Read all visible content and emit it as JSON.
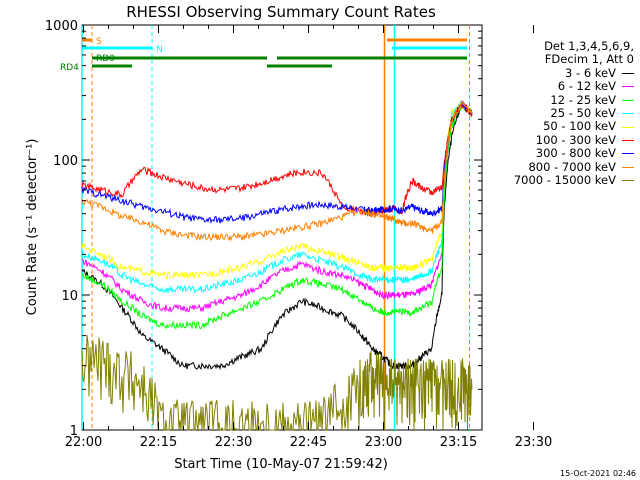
{
  "chart_data": {
    "type": "line",
    "title": "RHESSI Observing Summary Count Rates",
    "xlabel": "Start Time (10-May-07 21:59:42)",
    "ylabel": "Count Rate (s⁻¹ detector⁻¹)",
    "yscale": "log",
    "ylim": [
      1,
      1000
    ],
    "xlim_minutes": [
      0,
      80
    ],
    "x_ticks": [
      "22:00",
      "22:15",
      "22:30",
      "22:45",
      "23:00",
      "23:15",
      "23:30"
    ],
    "y_ticks": [
      "1",
      "10",
      "100",
      "1000"
    ],
    "legend_header": [
      "Det 1,3,4,5,6,9,",
      "FDecim 1, Att 0"
    ],
    "series": [
      {
        "name": "3 - 6 keV",
        "color": "#000000",
        "x": [
          0,
          4,
          8,
          12,
          16,
          20,
          24,
          28,
          32,
          36,
          40,
          44,
          48,
          52,
          56,
          58,
          60,
          62,
          64,
          66,
          68,
          70,
          72,
          74,
          76,
          78
        ],
        "values": [
          15,
          12,
          8,
          5,
          4,
          3,
          3,
          3,
          3.5,
          4,
          7,
          9,
          8,
          7,
          5,
          4,
          3.5,
          3,
          3,
          3,
          3.5,
          4,
          10,
          150,
          260,
          220
        ]
      },
      {
        "name": "6 - 12 keV",
        "color": "#ff00ff",
        "x": [
          0,
          4,
          8,
          12,
          16,
          20,
          24,
          28,
          32,
          36,
          40,
          44,
          48,
          52,
          56,
          58,
          60,
          62,
          64,
          66,
          68,
          70,
          72,
          74,
          76,
          78
        ],
        "values": [
          18,
          15,
          11,
          9,
          8,
          8,
          8,
          9,
          10,
          12,
          15,
          17,
          15,
          14,
          12,
          11,
          10,
          10,
          10,
          10,
          11,
          12,
          20,
          200,
          260,
          220
        ]
      },
      {
        "name": "12 - 25 keV",
        "color": "#00ff00",
        "x": [
          0,
          4,
          8,
          12,
          16,
          20,
          24,
          28,
          32,
          36,
          40,
          44,
          48,
          52,
          56,
          58,
          60,
          62,
          64,
          66,
          68,
          70,
          72,
          74,
          76,
          78
        ],
        "values": [
          14,
          12,
          9,
          7,
          6,
          6,
          6,
          7,
          8,
          9,
          11,
          13,
          12,
          11,
          9,
          8,
          7.5,
          7.5,
          7.5,
          7.5,
          8,
          9,
          16,
          180,
          260,
          220
        ]
      },
      {
        "name": "25 - 50 keV",
        "color": "#00ffff",
        "x": [
          0,
          4,
          8,
          12,
          16,
          20,
          24,
          28,
          32,
          36,
          40,
          44,
          48,
          52,
          56,
          58,
          60,
          62,
          64,
          66,
          68,
          70,
          72,
          74,
          76,
          78
        ],
        "values": [
          20,
          18,
          14,
          12,
          11,
          11,
          11,
          12,
          13,
          15,
          18,
          20,
          18,
          16,
          14,
          13,
          13,
          13,
          13,
          13,
          14,
          15,
          25,
          220,
          260,
          220
        ]
      },
      {
        "name": "50 - 100 keV",
        "color": "#ffff00",
        "x": [
          0,
          4,
          8,
          12,
          16,
          20,
          24,
          28,
          32,
          36,
          40,
          44,
          48,
          52,
          56,
          58,
          60,
          62,
          64,
          66,
          68,
          70,
          72,
          74,
          76,
          78
        ],
        "values": [
          23,
          20,
          16,
          15,
          14,
          14,
          14,
          15,
          16,
          18,
          21,
          23,
          21,
          19,
          17,
          16,
          16,
          16,
          16,
          16,
          17,
          18,
          30,
          220,
          260,
          220
        ]
      },
      {
        "name": "100 - 300 keV",
        "color": "#ff0000",
        "x": [
          0,
          4,
          8,
          12,
          16,
          20,
          24,
          28,
          32,
          36,
          40,
          44,
          48,
          52,
          56,
          58,
          60,
          62,
          64,
          66,
          68,
          70,
          72,
          74,
          76,
          78
        ],
        "values": [
          65,
          60,
          55,
          85,
          75,
          68,
          62,
          60,
          62,
          68,
          76,
          82,
          80,
          45,
          42,
          40,
          42,
          44,
          42,
          70,
          62,
          58,
          62,
          200,
          260,
          220
        ]
      },
      {
        "name": "300 - 800 keV",
        "color": "#0000ff",
        "x": [
          0,
          4,
          8,
          12,
          16,
          20,
          24,
          28,
          32,
          36,
          40,
          44,
          48,
          52,
          56,
          58,
          60,
          62,
          64,
          66,
          68,
          70,
          72,
          74,
          76,
          78
        ],
        "values": [
          60,
          55,
          50,
          45,
          42,
          38,
          36,
          36,
          37,
          40,
          43,
          46,
          47,
          45,
          43,
          42,
          43,
          44,
          42,
          45,
          42,
          40,
          44,
          200,
          260,
          220
        ]
      },
      {
        "name": "800 - 7000 keV",
        "color": "#ff8000",
        "x": [
          0,
          4,
          8,
          12,
          16,
          20,
          24,
          28,
          32,
          36,
          40,
          44,
          48,
          52,
          56,
          58,
          60,
          62,
          64,
          66,
          68,
          70,
          72,
          74,
          76,
          78
        ],
        "values": [
          50,
          45,
          38,
          35,
          30,
          28,
          27,
          27,
          27,
          28,
          30,
          32,
          34,
          38,
          42,
          40,
          38,
          37,
          34,
          34,
          32,
          30,
          35,
          200,
          260,
          220
        ]
      },
      {
        "name": "7000 - 15000 keV",
        "color": "#808000",
        "x": [
          0,
          4,
          8,
          12,
          16,
          20,
          24,
          28,
          32,
          36,
          40,
          44,
          48,
          52,
          56,
          58,
          60,
          62,
          64,
          66,
          68,
          70,
          72,
          74,
          76,
          78
        ],
        "values": [
          3,
          3,
          2.5,
          2,
          1,
          1,
          1,
          1,
          1,
          1,
          1,
          1,
          1,
          1.5,
          2,
          2.5,
          2,
          2,
          2,
          2,
          2,
          2,
          2,
          2,
          2,
          2
        ]
      }
    ],
    "flags": [
      {
        "label": "S",
        "color": "#ff8000"
      },
      {
        "label": "N",
        "color": "#00ffff"
      },
      {
        "label": "RD0",
        "color": "#008000"
      },
      {
        "label": "RD4",
        "color": "#008000"
      }
    ]
  },
  "timestamp": "15-Oct-2021 02:46"
}
